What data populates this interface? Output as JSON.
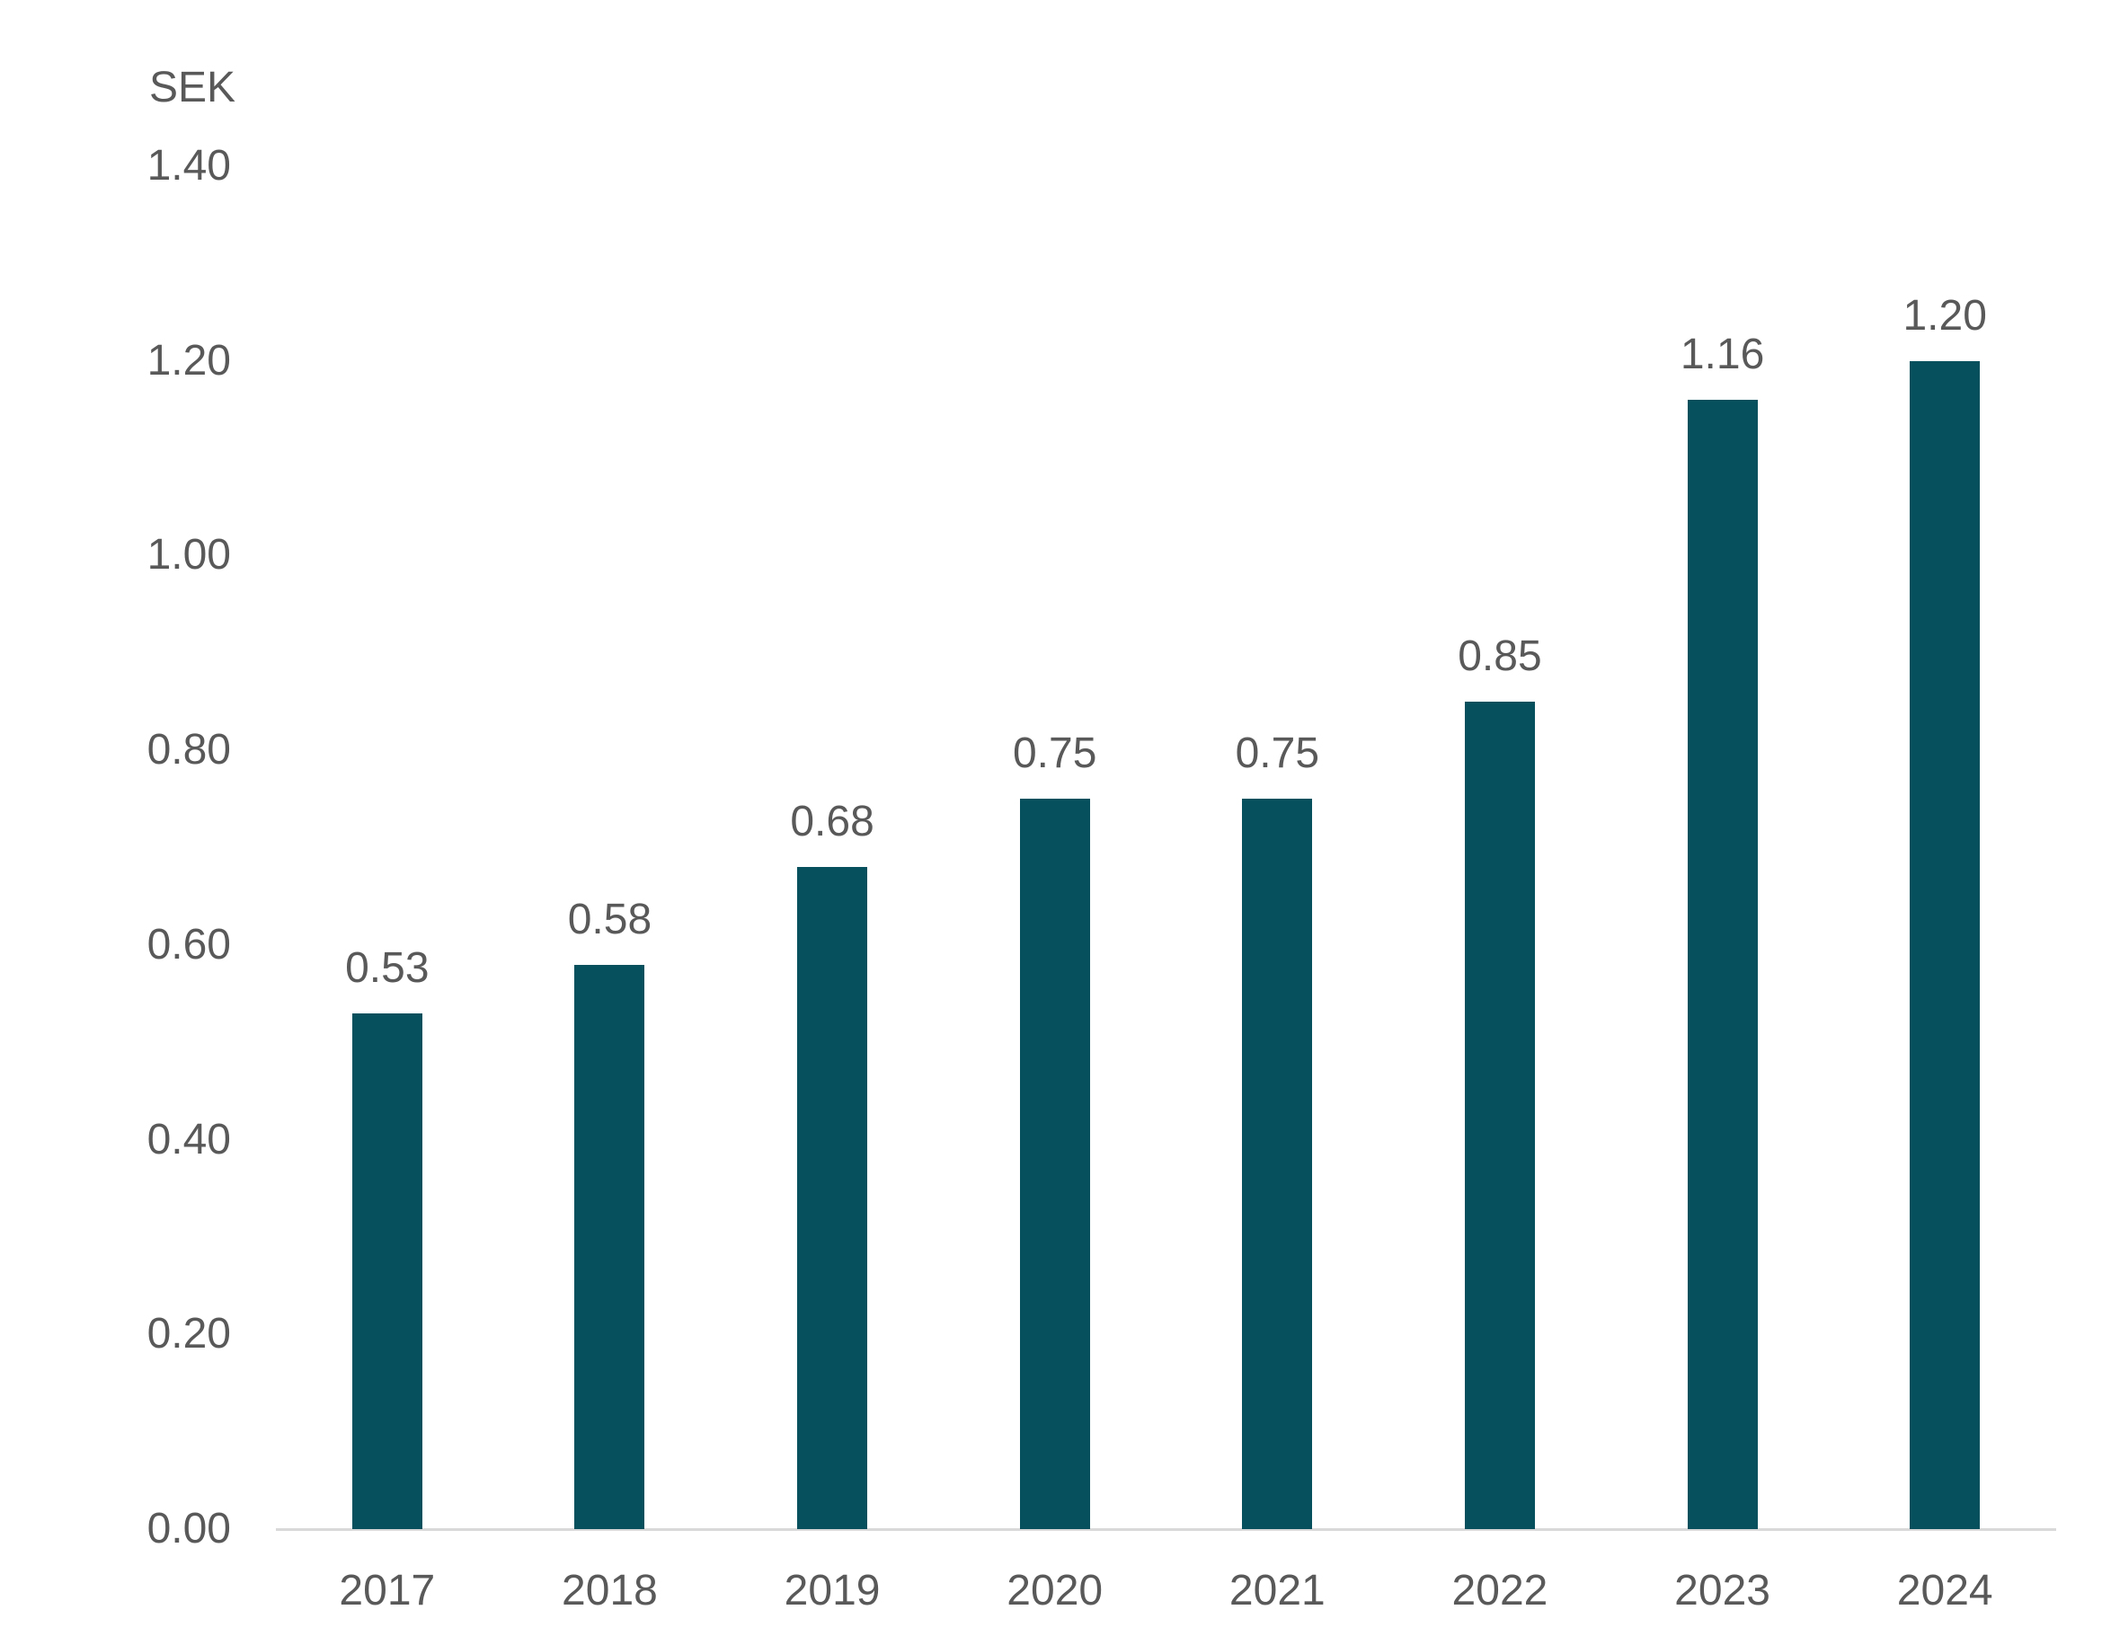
{
  "chart_data": {
    "type": "bar",
    "title": "",
    "ylabel": "SEK",
    "xlabel": "",
    "categories": [
      "2017",
      "2018",
      "2019",
      "2020",
      "2021",
      "2022",
      "2023",
      "2024"
    ],
    "values": [
      0.53,
      0.58,
      0.68,
      0.75,
      0.75,
      0.85,
      1.16,
      1.2
    ],
    "data_labels": [
      "0.53",
      "0.58",
      "0.68",
      "0.75",
      "0.75",
      "0.85",
      "1.16",
      "1.20"
    ],
    "y_ticks": [
      "0.00",
      "0.20",
      "0.40",
      "0.60",
      "0.80",
      "1.00",
      "1.20",
      "1.40"
    ],
    "ylim": [
      0,
      1.4
    ],
    "grid": false,
    "legend_position": "none",
    "bar_color": "#05505C",
    "text_color": "#595959",
    "axis_line_color": "#D9D9D9"
  }
}
